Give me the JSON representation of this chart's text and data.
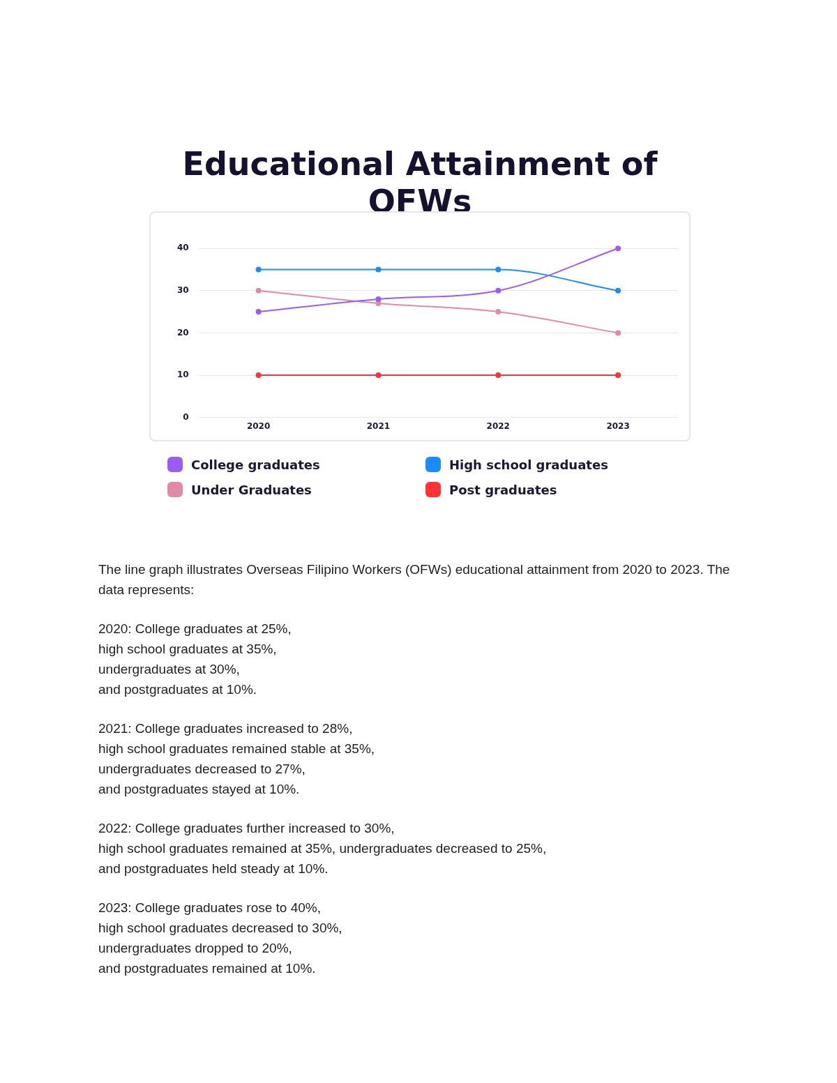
{
  "chart_data": {
    "type": "line",
    "title": "Educational Attainment of OFWs",
    "categories": [
      "2020",
      "2021",
      "2022",
      "2023"
    ],
    "series": [
      {
        "name": "College graduates",
        "color": "#9b5cf6",
        "values": [
          25,
          28,
          30,
          40
        ]
      },
      {
        "name": "High school graduates",
        "color": "#1a8cff",
        "values": [
          35,
          35,
          35,
          30
        ]
      },
      {
        "name": "Under Graduates",
        "color": "#e08aa8",
        "values": [
          30,
          27,
          25,
          20
        ]
      },
      {
        "name": "Post graduates",
        "color": "#ff3333",
        "values": [
          10,
          10,
          10,
          10
        ]
      }
    ],
    "ylim": [
      0,
      40
    ],
    "yticks": [
      0,
      10,
      20,
      30,
      40
    ],
    "grid": "y",
    "legend": "bottom",
    "marker": "circle",
    "line_style": "solid",
    "annotations": [
      "The line graph illustrates Overseas Filipino Workers (OFWs) educational attainment from 2020 to 2023. The data represents:",
      "2020: College graduates at 25%,\nhigh school graduates at 35%,\nundergraduates at 30%,\nand postgraduates at 10%.",
      "2021: College graduates increased to 28%,\nhigh school graduates remained stable at 35%,\nundergraduates decreased to 27%,\nand postgraduates stayed at 10%.",
      "2022: College graduates further increased to 30%,\nhigh school graduates remained at 35%, undergraduates decreased to 25%,\nand postgraduates held steady at 10%.",
      "2023: College graduates rose to 40%,\nhigh school graduates decreased to 30%,\nundergraduates dropped to 20%,\nand postgraduates remained at 10%."
    ]
  }
}
